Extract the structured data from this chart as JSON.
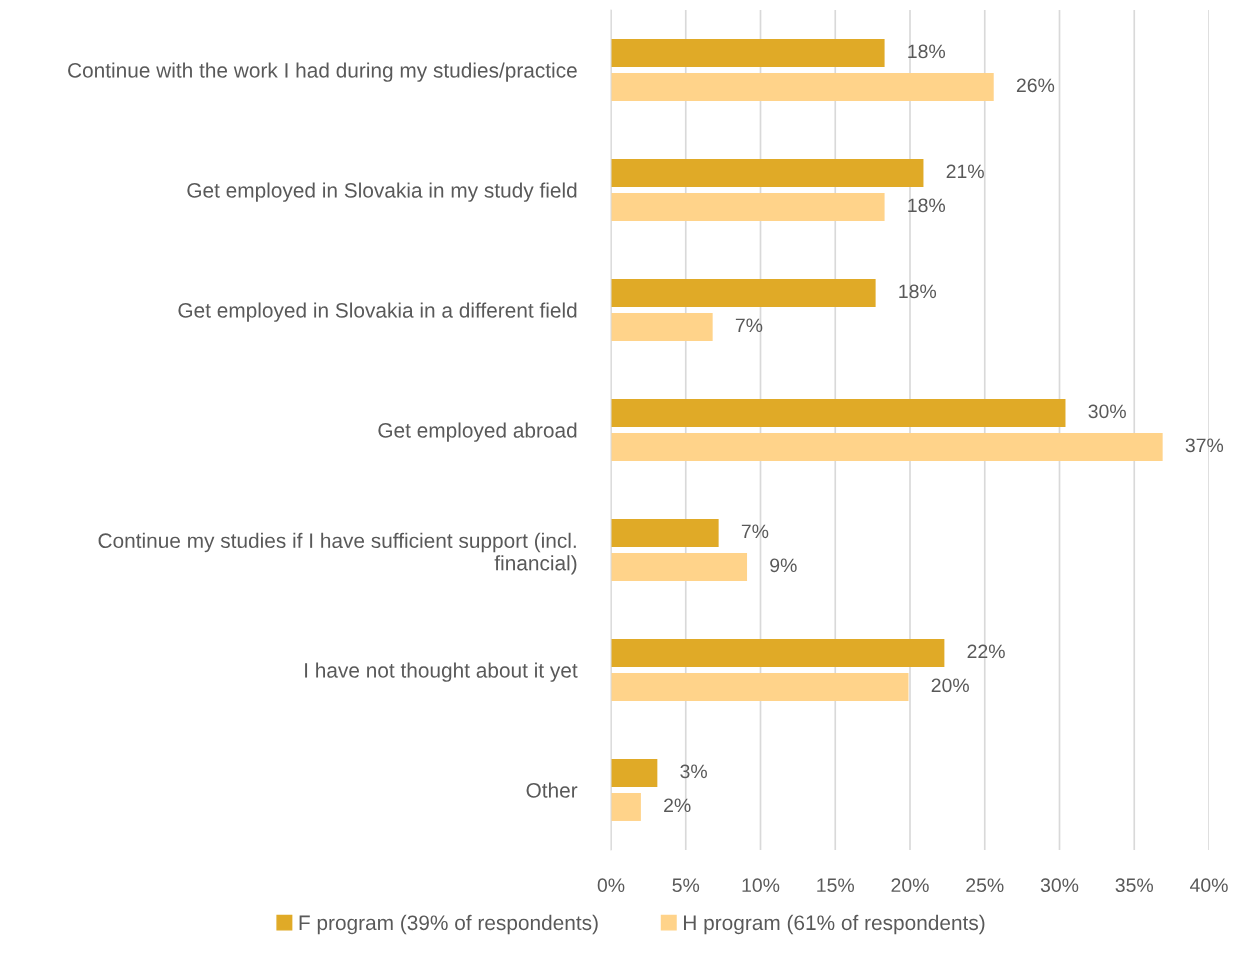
{
  "chart_data": {
    "type": "bar",
    "orientation": "horizontal",
    "categories": [
      "Continue with the work I had during my studies/practice",
      "Get employed in Slovakia in my study field",
      "Get employed in Slovakia in a different field",
      "Get employed abroad",
      "Continue my studies if I have sufficient support (incl. financial)",
      "I have not thought about it yet",
      "Other"
    ],
    "series": [
      {
        "name": "F program (39% of respondents)",
        "color": "#e0aa27",
        "values": [
          18.3,
          20.9,
          17.7,
          30.4,
          7.2,
          22.3,
          3.1
        ],
        "value_labels": [
          "18%",
          "21%",
          "18%",
          "30%",
          "7%",
          "22%",
          "3%"
        ]
      },
      {
        "name": "H program (61% of respondents)",
        "color": "#ffd38a",
        "values": [
          25.6,
          18.3,
          6.8,
          36.9,
          9.1,
          19.9,
          2.0
        ],
        "value_labels": [
          "26%",
          "18%",
          "7%",
          "37%",
          "9%",
          "20%",
          "2%"
        ]
      }
    ],
    "xlim": [
      0,
      40
    ],
    "xticks": [
      {
        "value": 0,
        "label": "0%"
      },
      {
        "value": 5,
        "label": "5%"
      },
      {
        "value": 10,
        "label": "10%"
      },
      {
        "value": 15,
        "label": "15%"
      },
      {
        "value": 20,
        "label": "20%"
      },
      {
        "value": 25,
        "label": "25%"
      },
      {
        "value": 30,
        "label": "30%"
      },
      {
        "value": 35,
        "label": "35%"
      },
      {
        "value": 40,
        "label": "40%"
      }
    ],
    "grid": "x",
    "legend": "bottom"
  }
}
